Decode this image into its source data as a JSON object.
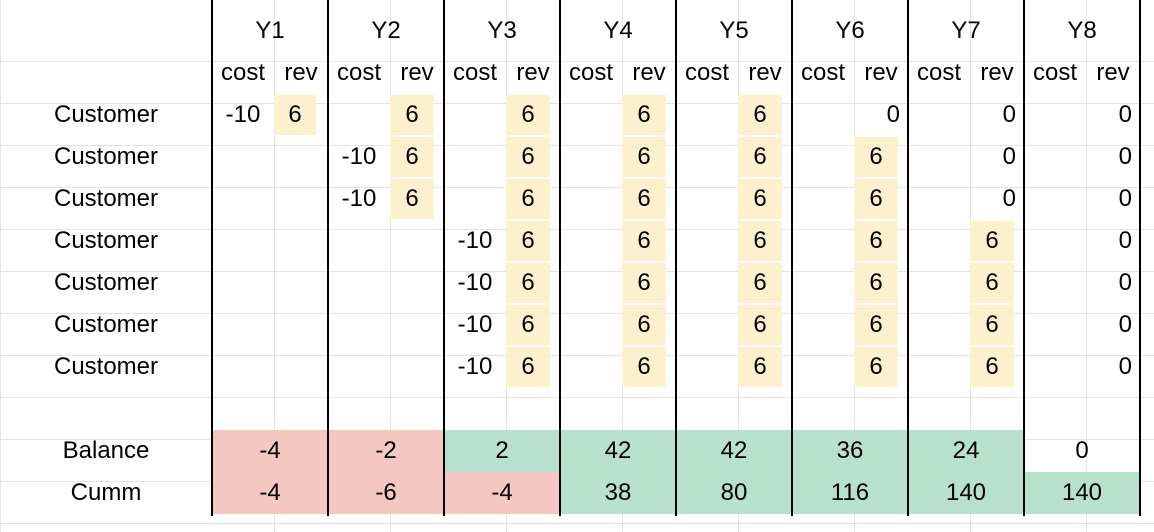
{
  "years": [
    "Y1",
    "Y2",
    "Y3",
    "Y4",
    "Y5",
    "Y6",
    "Y7",
    "Y8"
  ],
  "subheaders": {
    "cost": "cost",
    "rev": "rev"
  },
  "rows": [
    {
      "label": "Customer",
      "cells": [
        [
          "-10",
          "6"
        ],
        [
          "",
          "6"
        ],
        [
          "",
          "6"
        ],
        [
          "",
          "6"
        ],
        [
          "",
          "6"
        ],
        [
          "",
          "0"
        ],
        [
          "",
          "0"
        ],
        [
          "",
          "0"
        ]
      ]
    },
    {
      "label": "Customer",
      "cells": [
        [
          "",
          ""
        ],
        [
          "-10",
          "6"
        ],
        [
          "",
          "6"
        ],
        [
          "",
          "6"
        ],
        [
          "",
          "6"
        ],
        [
          "",
          "6"
        ],
        [
          "",
          "0"
        ],
        [
          "",
          "0"
        ]
      ]
    },
    {
      "label": "Customer",
      "cells": [
        [
          "",
          ""
        ],
        [
          "-10",
          "6"
        ],
        [
          "",
          "6"
        ],
        [
          "",
          "6"
        ],
        [
          "",
          "6"
        ],
        [
          "",
          "6"
        ],
        [
          "",
          "0"
        ],
        [
          "",
          "0"
        ]
      ]
    },
    {
      "label": "Customer",
      "cells": [
        [
          "",
          ""
        ],
        [
          "",
          ""
        ],
        [
          "-10",
          "6"
        ],
        [
          "",
          "6"
        ],
        [
          "",
          "6"
        ],
        [
          "",
          "6"
        ],
        [
          "",
          "6"
        ],
        [
          "",
          "0"
        ]
      ]
    },
    {
      "label": "Customer",
      "cells": [
        [
          "",
          ""
        ],
        [
          "",
          ""
        ],
        [
          "-10",
          "6"
        ],
        [
          "",
          "6"
        ],
        [
          "",
          "6"
        ],
        [
          "",
          "6"
        ],
        [
          "",
          "6"
        ],
        [
          "",
          "0"
        ]
      ]
    },
    {
      "label": "Customer",
      "cells": [
        [
          "",
          ""
        ],
        [
          "",
          ""
        ],
        [
          "-10",
          "6"
        ],
        [
          "",
          "6"
        ],
        [
          "",
          "6"
        ],
        [
          "",
          "6"
        ],
        [
          "",
          "6"
        ],
        [
          "",
          "0"
        ]
      ]
    },
    {
      "label": "Customer",
      "cells": [
        [
          "",
          ""
        ],
        [
          "",
          ""
        ],
        [
          "-10",
          "6"
        ],
        [
          "",
          "6"
        ],
        [
          "",
          "6"
        ],
        [
          "",
          "6"
        ],
        [
          "",
          "6"
        ],
        [
          "",
          "0"
        ]
      ]
    }
  ],
  "highlight_color": "#fdf0cd",
  "negative_color": "#f4c7c3",
  "positive_color": "#b7e1cd",
  "balance": {
    "label": "Balance",
    "values": [
      "-4",
      "-2",
      "2",
      "42",
      "42",
      "36",
      "24",
      "0"
    ]
  },
  "cumm": {
    "label": "Cumm",
    "values": [
      "-4",
      "-6",
      "-4",
      "38",
      "80",
      "116",
      "140",
      "140"
    ]
  }
}
